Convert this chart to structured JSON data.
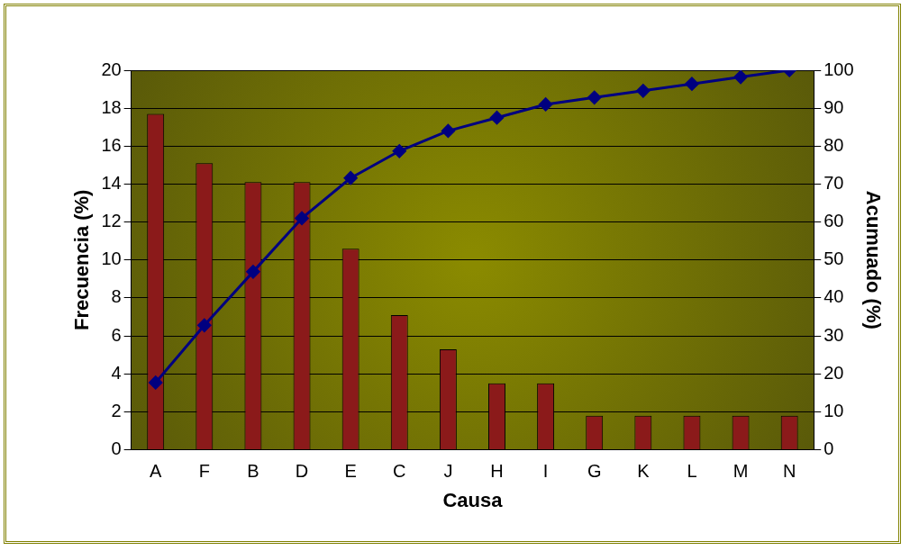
{
  "chart_data": {
    "type": "bar",
    "xlabel": "Causa",
    "ylabel": "Frecuencia (%)",
    "y2label": "Acumuado (%)",
    "categories": [
      "A",
      "F",
      "B",
      "D",
      "E",
      "C",
      "J",
      "H",
      "I",
      "G",
      "K",
      "L",
      "M",
      "N"
    ],
    "series": [
      {
        "color": "#8b1a1a",
        "values": [
          17.7,
          15.1,
          14.1,
          14.1,
          10.6,
          7.1,
          5.3,
          3.5,
          3.5,
          1.8,
          1.8,
          1.8,
          1.8,
          1.8
        ]
      },
      {
        "type": "line",
        "axis": "y2",
        "color": "#000080",
        "values": [
          17.7,
          32.8,
          46.9,
          61.0,
          71.6,
          78.7,
          84.0,
          87.5,
          91.0,
          92.8,
          94.6,
          96.4,
          98.2,
          100
        ]
      }
    ],
    "ylim": [
      0,
      20
    ],
    "yticks": [
      0,
      2,
      4,
      6,
      8,
      10,
      12,
      14,
      16,
      18,
      20
    ],
    "y2lim": [
      0,
      100
    ],
    "y2ticks": [
      0,
      10,
      20,
      30,
      40,
      50,
      60,
      70,
      80,
      90,
      100
    ],
    "grid": "y",
    "legend": false,
    "marker": "diamond",
    "line_style": "solid"
  }
}
